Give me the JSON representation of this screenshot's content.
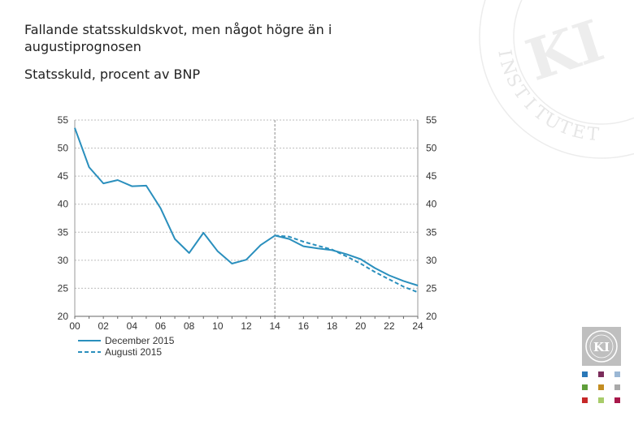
{
  "slide": {
    "title": "Fallande statsskuldskvot, men något högre än i augustiprognosen",
    "subtitle": "Statsskuld, procent av BNP"
  },
  "watermark": {
    "letters": [
      "I",
      "N",
      "S",
      "T",
      "I",
      "T",
      "U",
      "T",
      "E",
      "T",
      "KI"
    ]
  },
  "logo": {
    "text": "KI"
  },
  "colors": {
    "series": "#2a8fbd",
    "grid": "#bdbdbd",
    "forecast_line": "#8c8c8c",
    "swatches": [
      "#2a78b8",
      "#7b2c5b",
      "#9bb7d4",
      "#5f9e3a",
      "#c38d22",
      "#a9a9a9",
      "#c62828",
      "#a8cc6a",
      "#a8184a"
    ]
  },
  "chart_data": {
    "type": "line",
    "title": "Statsskuld, procent av BNP",
    "xlabel": "",
    "ylabel": "",
    "xlim": [
      2000,
      2024
    ],
    "ylim": [
      20,
      55
    ],
    "x_ticks": [
      2000,
      2002,
      2004,
      2006,
      2008,
      2010,
      2012,
      2014,
      2016,
      2018,
      2020,
      2022,
      2024
    ],
    "x_tick_labels": [
      "00",
      "02",
      "04",
      "06",
      "08",
      "10",
      "12",
      "14",
      "16",
      "18",
      "20",
      "22",
      "24"
    ],
    "y_ticks": [
      20,
      25,
      30,
      35,
      40,
      45,
      50,
      55
    ],
    "y_tick_labels": [
      "20",
      "25",
      "30",
      "35",
      "40",
      "45",
      "50",
      "55"
    ],
    "grid": "horizontal dashed",
    "forecast_start": 2014,
    "legend_position": "bottom-left",
    "series": [
      {
        "name": "December 2015",
        "style": "solid",
        "x": [
          2000,
          2001,
          2002,
          2003,
          2004,
          2005,
          2006,
          2007,
          2008,
          2009,
          2010,
          2011,
          2012,
          2013,
          2014,
          2015,
          2016,
          2017,
          2018,
          2019,
          2020,
          2021,
          2022,
          2023,
          2024
        ],
        "values": [
          53.6,
          46.6,
          43.7,
          44.3,
          43.2,
          43.3,
          39.3,
          33.8,
          31.3,
          34.9,
          31.6,
          29.4,
          30.1,
          32.7,
          34.4,
          33.8,
          32.5,
          32.1,
          31.8,
          31.1,
          30.2,
          28.6,
          27.3,
          26.3,
          25.5
        ]
      },
      {
        "name": "Augusti 2015",
        "style": "dashed",
        "x": [
          2014,
          2015,
          2016,
          2017,
          2018,
          2019,
          2020,
          2021,
          2022,
          2023,
          2024
        ],
        "values": [
          34.4,
          34.2,
          33.3,
          32.6,
          31.9,
          30.7,
          29.4,
          27.9,
          26.6,
          25.3,
          24.3
        ]
      }
    ]
  }
}
